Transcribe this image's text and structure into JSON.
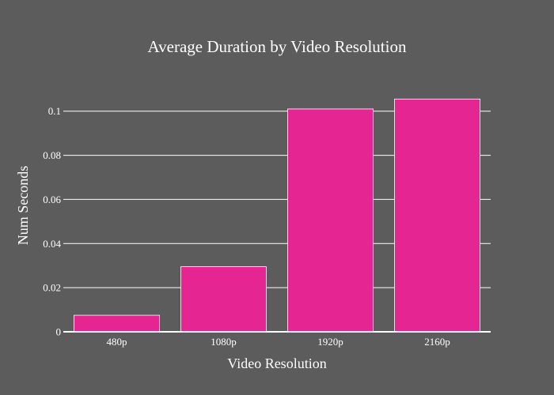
{
  "chart_data": {
    "type": "bar",
    "title": "Average Duration by Video Resolution",
    "xlabel": "Video Resolution",
    "ylabel": "Num Seconds",
    "categories": [
      "480p",
      "1080p",
      "1920p",
      "2160p"
    ],
    "values": [
      0.0075,
      0.0295,
      0.101,
      0.1055
    ],
    "ylim": [
      0,
      0.111
    ],
    "yticks": [
      0,
      0.02,
      0.04,
      0.06,
      0.08,
      0.1
    ],
    "ytick_labels": [
      "0",
      "0.02",
      "0.04",
      "0.06",
      "0.08",
      "0.1"
    ],
    "grid": true,
    "legend": "none",
    "colors": {
      "background": "#5c5c5c",
      "bar": "#e52592",
      "bar_outline": "#ffffff",
      "text": "#ffffff",
      "grid": "#ffffff"
    }
  }
}
